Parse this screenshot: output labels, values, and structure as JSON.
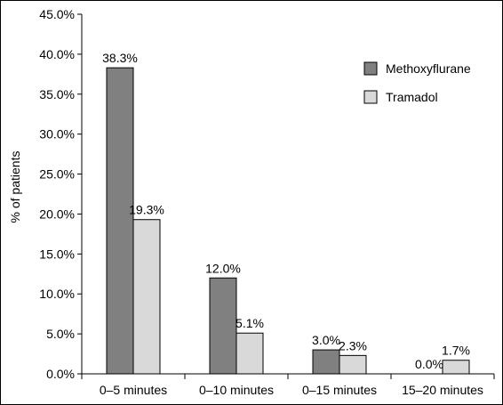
{
  "chart_data": {
    "type": "bar",
    "title": "",
    "xlabel": "",
    "ylabel": "% of patients",
    "ylim": [
      0,
      45
    ],
    "ytick_step": 5,
    "ytick_labels": [
      "0.0%",
      "5.0%",
      "10.0%",
      "15.0%",
      "20.0%",
      "25.0%",
      "30.0%",
      "35.0%",
      "40.0%",
      "45.0%"
    ],
    "categories": [
      "0–5 minutes",
      "0–10 minutes",
      "0–15 minutes",
      "15–20 minutes"
    ],
    "series": [
      {
        "name": "Methoxyflurane",
        "color": "#808080",
        "values": [
          38.3,
          12.0,
          3.0,
          0.0
        ],
        "labels": [
          "38.3%",
          "12.0%",
          "3.0%",
          "0.0%"
        ]
      },
      {
        "name": "Tramadol",
        "color": "#d9d9d9",
        "values": [
          19.3,
          5.1,
          2.3,
          1.7
        ],
        "labels": [
          "19.3%",
          "5.1%",
          "2.3%",
          "1.7%"
        ]
      }
    ],
    "grid": false,
    "legend_position": "top-right"
  }
}
